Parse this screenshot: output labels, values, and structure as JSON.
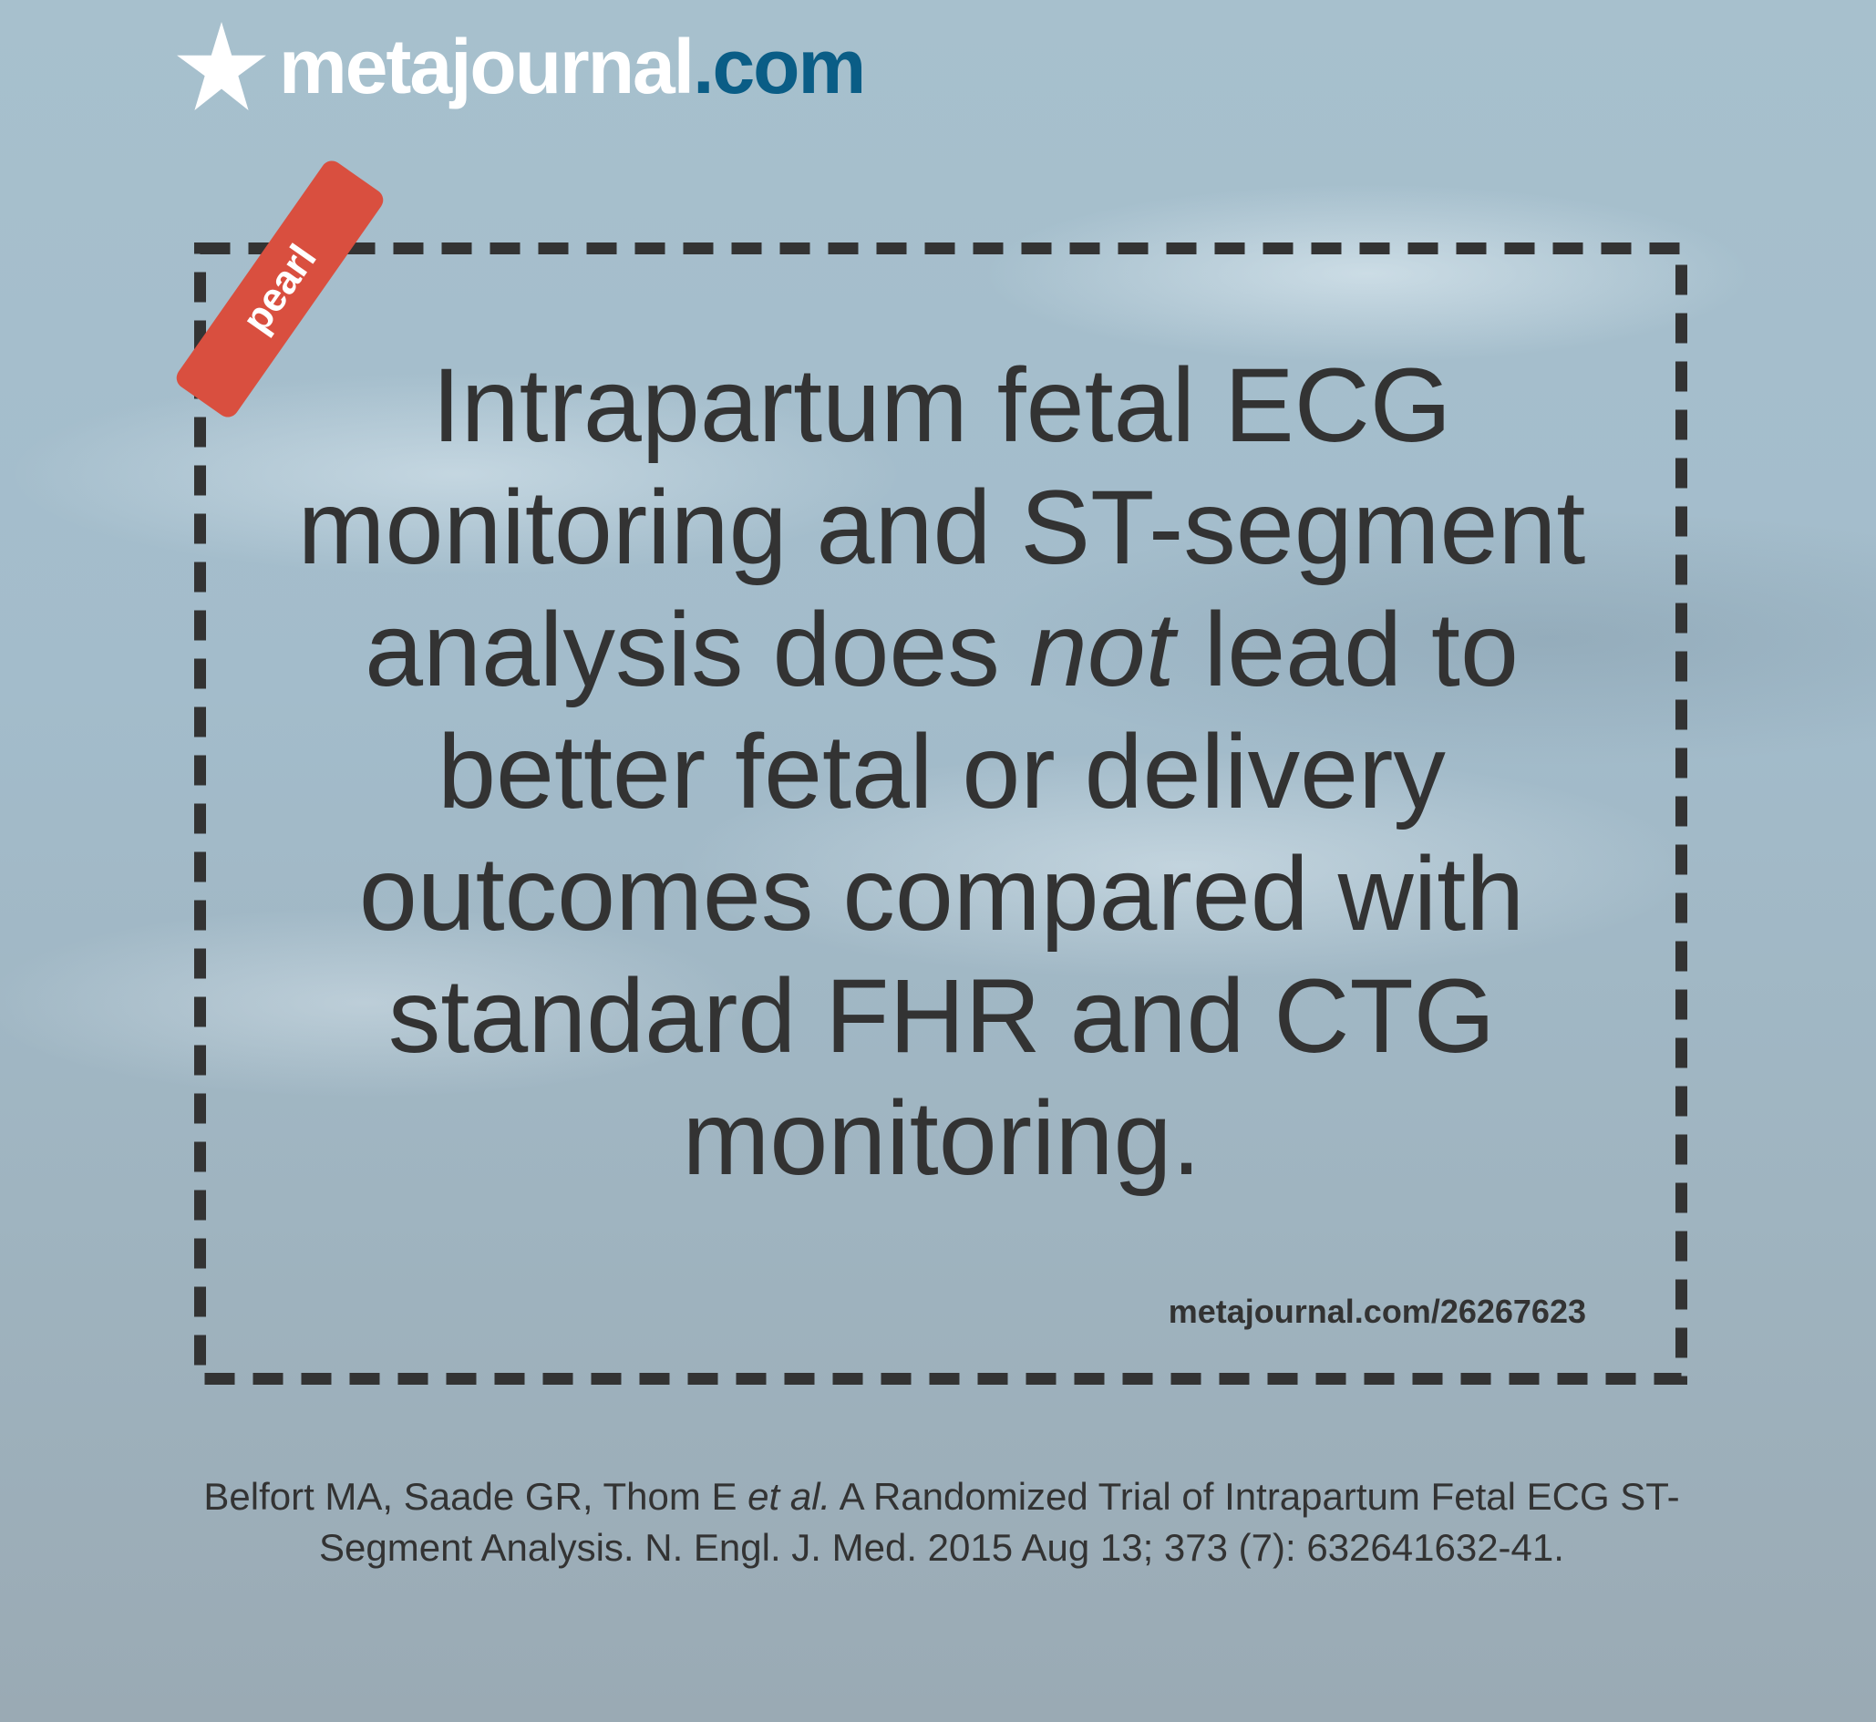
{
  "logo": {
    "name": "metajournal",
    "tld": ".com",
    "icon": "star-icon",
    "tld_color": "#0a5d86"
  },
  "tag": {
    "label": "pearl",
    "color": "#d94f3f"
  },
  "quote": {
    "before": "Intrapartum fetal ECG monitoring and ST-segment analysis does ",
    "emphasis": "not",
    "after": " lead to better fetal or delivery outcomes compared with standard FHR and CTG monitoring."
  },
  "link": "metajournal.com/26267623",
  "citation": {
    "authors": "Belfort MA, Saade GR, Thom E ",
    "etal": "et al.",
    "rest": " A Randomized Trial of Intrapartum Fetal ECG ST-Segment Analysis. N. Engl. J. Med. 2015 Aug 13; 373 (7): 632641632-41."
  }
}
